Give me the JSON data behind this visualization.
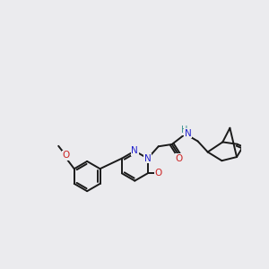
{
  "bg_color": "#ebebee",
  "bond_color": "#1a1a1a",
  "N_color": "#2222cc",
  "O_color": "#cc2222",
  "H_color": "#3a9090",
  "lw": 1.4,
  "fs": 7.5,
  "xlim": [
    0,
    10
  ],
  "ylim": [
    0,
    10
  ],
  "dbg": 0.09
}
